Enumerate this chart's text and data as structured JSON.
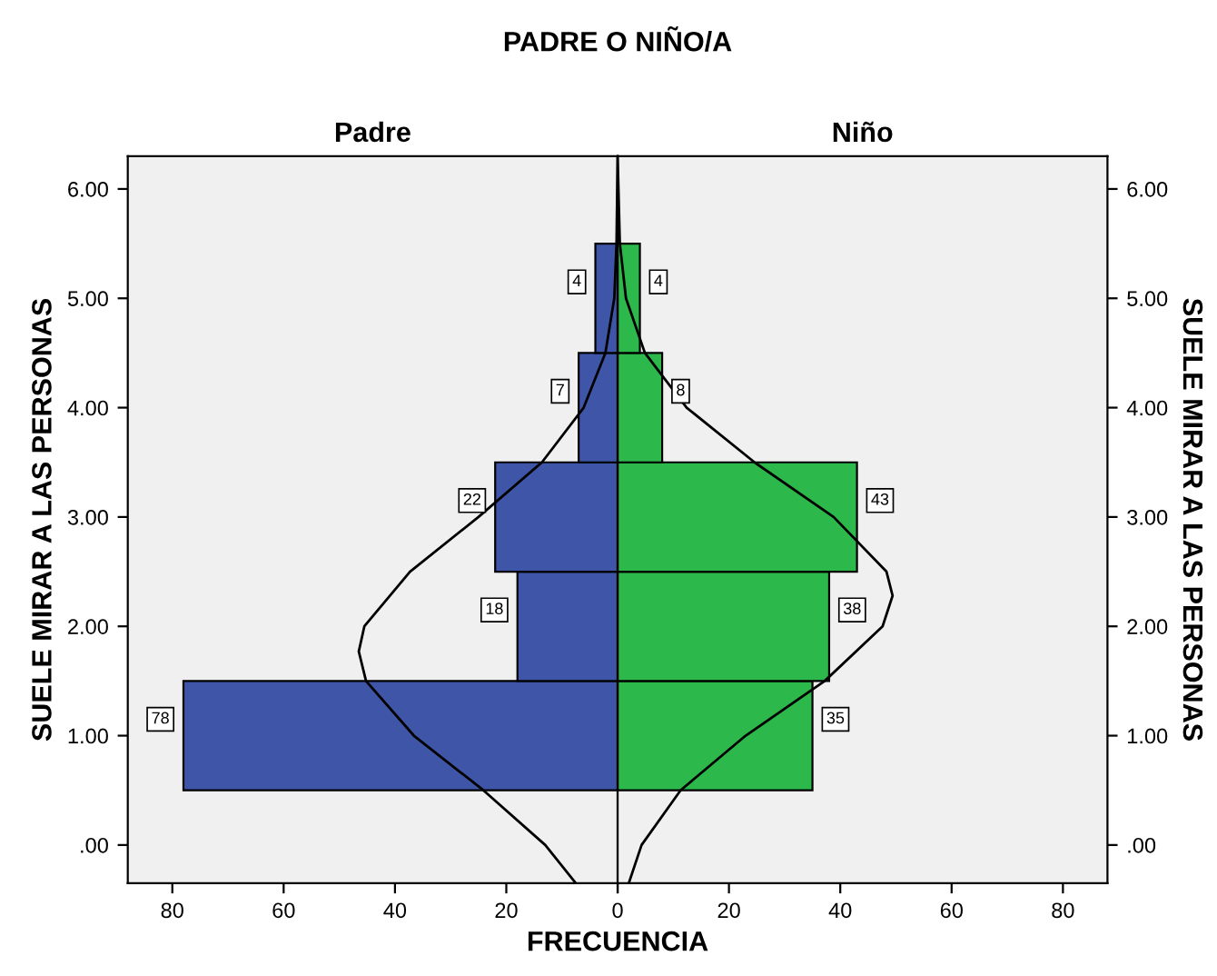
{
  "chart_data": [
    {
      "type": "bar",
      "orientation": "horizontal",
      "title": "PADRE O NIÑO/A",
      "subtitle": "Padre",
      "xlabel": "FRECUENCIA",
      "ylabel": "SUELE MIRAR A LAS PERSONAS",
      "xlim": [
        88,
        0
      ],
      "xticks": [
        80,
        60,
        40,
        20,
        0
      ],
      "ylim": [
        -0.35,
        6.3
      ],
      "yticks": [
        {
          "value": 0,
          "label": ".00"
        },
        {
          "value": 1,
          "label": "1.00"
        },
        {
          "value": 2,
          "label": "2.00"
        },
        {
          "value": 3,
          "label": "3.00"
        },
        {
          "value": 4,
          "label": "4.00"
        },
        {
          "value": 5,
          "label": "5.00"
        },
        {
          "value": 6,
          "label": "6.00"
        }
      ],
      "series": [
        {
          "color": "#3f56a8",
          "x": [
            1,
            2,
            3,
            4,
            5
          ],
          "values": [
            78,
            18,
            22,
            7,
            4
          ],
          "value_labels": [
            "78",
            "18",
            "22",
            "7",
            "4"
          ]
        },
        {
          "type": "line",
          "color": "#000000",
          "x": [
            -0.35,
            0,
            0.5,
            1,
            1.5,
            1.77,
            2,
            2.5,
            3,
            3.5,
            4,
            4.5,
            5,
            5.5,
            6.3
          ],
          "values": [
            7.5,
            13,
            24.1,
            36.6,
            45.2,
            46.5,
            45.5,
            37.3,
            25,
            13.6,
            6.1,
            2.2,
            0.6,
            0.2,
            0
          ]
        }
      ]
    },
    {
      "type": "bar",
      "orientation": "horizontal",
      "subtitle": "Niño",
      "ylabel": "SUELE MIRAR A LAS PERSONAS",
      "xlim": [
        0,
        88
      ],
      "xticks": [
        {
          "value": 0,
          "label": null
        },
        20,
        40,
        60,
        80
      ],
      "ylim": [
        -0.35,
        6.3
      ],
      "yticks": [
        {
          "value": 0,
          "label": ".00"
        },
        {
          "value": 1,
          "label": "1.00"
        },
        {
          "value": 2,
          "label": "2.00"
        },
        {
          "value": 3,
          "label": "3.00"
        },
        {
          "value": 4,
          "label": "4.00"
        },
        {
          "value": 5,
          "label": "5.00"
        },
        {
          "value": 6,
          "label": "6.00"
        }
      ],
      "series": [
        {
          "color": "#2db84b",
          "x": [
            1,
            2,
            3,
            4,
            5
          ],
          "values": [
            35,
            38,
            43,
            8,
            4
          ],
          "value_labels": [
            "35",
            "38",
            "43",
            "8",
            "4"
          ]
        },
        {
          "type": "line",
          "color": "#000000",
          "x": [
            -0.35,
            0,
            0.5,
            1,
            1.5,
            2,
            2.28,
            2.5,
            3,
            3.5,
            4,
            4.5,
            5,
            5.5,
            6.3
          ],
          "values": [
            2,
            4.3,
            11.3,
            23,
            37.2,
            47.6,
            49.4,
            48.3,
            38.8,
            24.6,
            12.4,
            4.9,
            1.5,
            0.4,
            0
          ]
        }
      ]
    }
  ]
}
